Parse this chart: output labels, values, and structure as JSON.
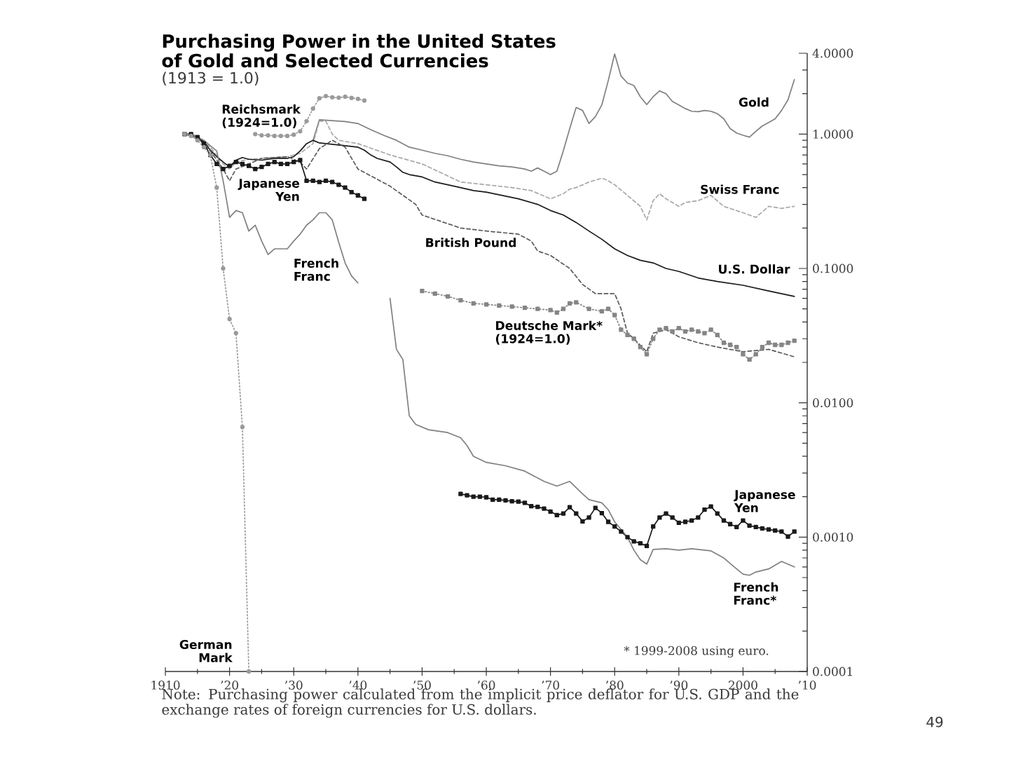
{
  "chart_data": {
    "type": "line",
    "title": "Purchasing Power in the United States of Gold and Selected Currencies",
    "subtitle": "(1913 = 1.0)",
    "log": "y",
    "xlim": [
      1910,
      2010
    ],
    "xticks": [
      1910,
      {
        "value": 1915,
        "label": null
      },
      {
        "value": 1920,
        "label": "’20"
      },
      {
        "value": 1925,
        "label": null
      },
      {
        "value": 1930,
        "label": "’30"
      },
      {
        "value": 1935,
        "label": null
      },
      {
        "value": 1940,
        "label": "’40"
      },
      {
        "value": 1945,
        "label": null
      },
      {
        "value": 1950,
        "label": "’50"
      },
      {
        "value": 1955,
        "label": null
      },
      {
        "value": 1960,
        "label": "’60"
      },
      {
        "value": 1965,
        "label": null
      },
      {
        "value": 1970,
        "label": "’70"
      },
      {
        "value": 1975,
        "label": null
      },
      {
        "value": 1980,
        "label": "’80"
      },
      {
        "value": 1985,
        "label": null
      },
      {
        "value": 1990,
        "label": "’90"
      },
      {
        "value": 1995,
        "label": null
      },
      2000,
      {
        "value": 2005,
        "label": null
      },
      {
        "value": 2010,
        "label": "’10"
      }
    ],
    "ylim": [
      0.0001,
      4
    ],
    "yticks": [
      {
        "value": 4,
        "label": "4.0000"
      },
      {
        "value": 3,
        "label": null
      },
      {
        "value": 2,
        "label": null
      },
      {
        "value": 1,
        "label": "1.0000"
      },
      {
        "value": 0.9,
        "label": null
      },
      {
        "value": 0.8,
        "label": null
      },
      {
        "value": 0.7,
        "label": null
      },
      {
        "value": 0.6,
        "label": null
      },
      {
        "value": 0.5,
        "label": null
      },
      {
        "value": 0.4,
        "label": null
      },
      {
        "value": 0.3,
        "label": null
      },
      {
        "value": 0.2,
        "label": null
      },
      {
        "value": 0.1,
        "label": "0.1000"
      },
      {
        "value": 0.09,
        "label": null
      },
      {
        "value": 0.08,
        "label": null
      },
      {
        "value": 0.07,
        "label": null
      },
      {
        "value": 0.06,
        "label": null
      },
      {
        "value": 0.05,
        "label": null
      },
      {
        "value": 0.04,
        "label": null
      },
      {
        "value": 0.03,
        "label": null
      },
      {
        "value": 0.02,
        "label": null
      },
      {
        "value": 0.01,
        "label": "0.0100"
      },
      {
        "value": 0.009,
        "label": null
      },
      {
        "value": 0.008,
        "label": null
      },
      {
        "value": 0.007,
        "label": null
      },
      {
        "value": 0.006,
        "label": null
      },
      {
        "value": 0.005,
        "label": null
      },
      {
        "value": 0.004,
        "label": null
      },
      {
        "value": 0.003,
        "label": null
      },
      {
        "value": 0.002,
        "label": null
      },
      {
        "value": 0.001,
        "label": "0.0010"
      },
      {
        "value": 0.0009,
        "label": null
      },
      {
        "value": 0.0008,
        "label": null
      },
      {
        "value": 0.0007,
        "label": null
      },
      {
        "value": 0.0006,
        "label": null
      },
      {
        "value": 0.0005,
        "label": null
      },
      {
        "value": 0.0004,
        "label": null
      },
      {
        "value": 0.0003,
        "label": null
      },
      {
        "value": 0.0002,
        "label": null
      },
      {
        "value": 0.0001,
        "label": "0.0001"
      }
    ],
    "annotations": [
      "* 1999-2008 using euro.",
      "Note: Purchasing power calculated from the implicit price deflator for U.S. GDP and the exchange rates of foreign currencies for U.S. dollars.",
      "49"
    ],
    "series": [
      {
        "name": "Gold",
        "color": "#808080",
        "line_style": "solid",
        "marker": "none",
        "x": [
          1933,
          1934,
          1936,
          1938,
          1940,
          1942,
          1944,
          1946,
          1948,
          1950,
          1952,
          1954,
          1956,
          1958,
          1960,
          1962,
          1964,
          1966,
          1967,
          1968,
          1969,
          1970,
          1971,
          1972,
          1973,
          1974,
          1975,
          1976,
          1977,
          1978,
          1979,
          1980,
          1981,
          1982,
          1983,
          1984,
          1985,
          1986,
          1987,
          1988,
          1989,
          1990,
          1991,
          1992,
          1993,
          1994,
          1995,
          1996,
          1997,
          1998,
          1999,
          2000,
          2001,
          2002,
          2003,
          2004,
          2005,
          2006,
          2007,
          2008
        ],
        "values": [
          0.9,
          1.28,
          1.26,
          1.24,
          1.2,
          1.08,
          0.98,
          0.9,
          0.8,
          0.76,
          0.72,
          0.69,
          0.65,
          0.62,
          0.6,
          0.58,
          0.57,
          0.55,
          0.53,
          0.56,
          0.53,
          0.5,
          0.53,
          0.75,
          1.1,
          1.58,
          1.5,
          1.2,
          1.35,
          1.65,
          2.5,
          3.95,
          2.7,
          2.4,
          2.3,
          1.9,
          1.66,
          1.9,
          2.1,
          2.0,
          1.75,
          1.65,
          1.55,
          1.48,
          1.47,
          1.5,
          1.48,
          1.42,
          1.3,
          1.1,
          1.02,
          0.98,
          0.95,
          1.05,
          1.15,
          1.22,
          1.3,
          1.5,
          1.8,
          2.55
        ]
      },
      {
        "name": "Swiss Franc",
        "color": "#a8a8a8",
        "line_style": "dashed",
        "marker": "none",
        "x": [
          1913,
          1915,
          1917,
          1919,
          1920,
          1921,
          1923,
          1925,
          1927,
          1929,
          1931,
          1933,
          1934,
          1935,
          1936,
          1937,
          1940,
          1945,
          1950,
          1956,
          1960,
          1964,
          1967,
          1970,
          1972,
          1973,
          1974,
          1976,
          1978,
          1979,
          1980,
          1982,
          1984,
          1985,
          1986,
          1987,
          1988,
          1990,
          1991,
          1993,
          1995,
          1997,
          2000,
          2002,
          2004,
          2006,
          2008
        ],
        "values": [
          1.0,
          0.95,
          0.8,
          0.6,
          0.55,
          0.62,
          0.65,
          0.66,
          0.67,
          0.68,
          0.72,
          0.85,
          1.25,
          1.25,
          1.0,
          0.9,
          0.85,
          0.7,
          0.6,
          0.44,
          0.42,
          0.4,
          0.38,
          0.33,
          0.36,
          0.39,
          0.4,
          0.44,
          0.47,
          0.45,
          0.42,
          0.35,
          0.29,
          0.23,
          0.32,
          0.36,
          0.33,
          0.29,
          0.31,
          0.32,
          0.35,
          0.29,
          0.26,
          0.24,
          0.29,
          0.28,
          0.29
        ]
      },
      {
        "name": "U.S. Dollar",
        "color": "#1a1a1a",
        "line_style": "solid",
        "marker": "none",
        "x": [
          1913,
          1914,
          1915,
          1916,
          1917,
          1918,
          1919,
          1920,
          1921,
          1922,
          1923,
          1925,
          1927,
          1929,
          1930,
          1931,
          1932,
          1933,
          1934,
          1936,
          1938,
          1940,
          1941,
          1942,
          1943,
          1945,
          1946,
          1947,
          1948,
          1950,
          1952,
          1955,
          1958,
          1960,
          1965,
          1968,
          1970,
          1972,
          1974,
          1976,
          1978,
          1980,
          1982,
          1984,
          1986,
          1988,
          1990,
          1993,
          1996,
          2000,
          2004,
          2008
        ],
        "values": [
          1.0,
          0.99,
          0.96,
          0.88,
          0.76,
          0.68,
          0.62,
          0.57,
          0.64,
          0.67,
          0.65,
          0.64,
          0.66,
          0.66,
          0.68,
          0.75,
          0.85,
          0.9,
          0.86,
          0.84,
          0.82,
          0.8,
          0.76,
          0.7,
          0.66,
          0.62,
          0.57,
          0.52,
          0.5,
          0.48,
          0.44,
          0.41,
          0.38,
          0.37,
          0.33,
          0.3,
          0.27,
          0.25,
          0.22,
          0.19,
          0.165,
          0.14,
          0.125,
          0.115,
          0.11,
          0.1,
          0.095,
          0.085,
          0.08,
          0.075,
          0.068,
          0.062
        ]
      },
      {
        "name": "British Pound",
        "color": "#5a5a5a",
        "line_style": "dashed",
        "marker": "none",
        "x": [
          1913,
          1915,
          1917,
          1919,
          1920,
          1921,
          1923,
          1925,
          1927,
          1929,
          1931,
          1932,
          1934,
          1936,
          1938,
          1940,
          1945,
          1949,
          1950,
          1956,
          1960,
          1965,
          1967,
          1968,
          1970,
          1973,
          1975,
          1977,
          1980,
          1981,
          1982,
          1983,
          1985,
          1986,
          1988,
          1990,
          1993,
          1996,
          2000,
          2004,
          2008
        ],
        "values": [
          1.0,
          0.94,
          0.75,
          0.55,
          0.45,
          0.55,
          0.6,
          0.66,
          0.67,
          0.68,
          0.62,
          0.55,
          0.78,
          0.9,
          0.8,
          0.55,
          0.41,
          0.3,
          0.25,
          0.2,
          0.19,
          0.18,
          0.16,
          0.135,
          0.125,
          0.1,
          0.076,
          0.065,
          0.065,
          0.05,
          0.033,
          0.03,
          0.024,
          0.033,
          0.035,
          0.031,
          0.028,
          0.026,
          0.024,
          0.025,
          0.022
        ]
      },
      {
        "name": "Deutsche Mark* (1924=1.0)",
        "color": "#858585",
        "line_style": "dotted",
        "marker": "square",
        "x": [
          1950,
          1952,
          1954,
          1956,
          1958,
          1960,
          1962,
          1964,
          1966,
          1968,
          1970,
          1971,
          1972,
          1973,
          1974,
          1976,
          1978,
          1979,
          1980,
          1981,
          1982,
          1983,
          1984,
          1985,
          1986,
          1987,
          1988,
          1989,
          1990,
          1991,
          1992,
          1993,
          1994,
          1995,
          1996,
          1997,
          1998,
          1999,
          2000,
          2001,
          2002,
          2003,
          2004,
          2005,
          2006,
          2007,
          2008
        ],
        "values": [
          0.068,
          0.065,
          0.062,
          0.058,
          0.055,
          0.054,
          0.053,
          0.052,
          0.051,
          0.05,
          0.049,
          0.047,
          0.05,
          0.055,
          0.056,
          0.05,
          0.048,
          0.05,
          0.045,
          0.035,
          0.032,
          0.03,
          0.026,
          0.023,
          0.03,
          0.035,
          0.036,
          0.034,
          0.036,
          0.034,
          0.035,
          0.034,
          0.033,
          0.035,
          0.032,
          0.028,
          0.027,
          0.026,
          0.023,
          0.021,
          0.023,
          0.026,
          0.028,
          0.027,
          0.027,
          0.028,
          0.029
        ]
      },
      {
        "name": "Japanese Yen",
        "color": "#1a1a1a",
        "line_style": "solid",
        "marker": "square",
        "x": [
          1956,
          1957,
          1958,
          1959,
          1960,
          1961,
          1962,
          1963,
          1964,
          1965,
          1966,
          1967,
          1968,
          1969,
          1970,
          1971,
          1972,
          1973,
          1974,
          1975,
          1976,
          1977,
          1978,
          1979,
          1980,
          1981,
          1982,
          1983,
          1984,
          1985,
          1986,
          1987,
          1988,
          1989,
          1990,
          1991,
          1992,
          1993,
          1994,
          1995,
          1996,
          1997,
          1998,
          1999,
          2000,
          2001,
          2002,
          2003,
          2004,
          2005,
          2006,
          2007,
          2008
        ],
        "values": [
          0.0021,
          0.00205,
          0.002,
          0.002,
          0.00198,
          0.0019,
          0.0019,
          0.00188,
          0.00185,
          0.00184,
          0.0018,
          0.0017,
          0.00168,
          0.00163,
          0.00155,
          0.00146,
          0.0015,
          0.00167,
          0.0015,
          0.00131,
          0.0014,
          0.00165,
          0.00151,
          0.0013,
          0.0012,
          0.0011,
          0.001,
          0.00093,
          0.0009,
          0.00086,
          0.0012,
          0.0014,
          0.0015,
          0.0014,
          0.00128,
          0.0013,
          0.00133,
          0.0014,
          0.0016,
          0.00169,
          0.0015,
          0.00133,
          0.00125,
          0.00119,
          0.00133,
          0.00122,
          0.00119,
          0.00116,
          0.00114,
          0.00112,
          0.0011,
          0.00101,
          0.0011
        ]
      },
      {
        "name": "French Franc*",
        "color": "#808080",
        "line_style": "solid",
        "marker": "none",
        "x": [
          1945,
          1946,
          1947,
          1948,
          1949,
          1951,
          1954,
          1956,
          1957,
          1958,
          1960,
          1963,
          1966,
          1969,
          1971,
          1973,
          1975,
          1976,
          1978,
          1979,
          1980,
          1982,
          1983,
          1984,
          1985,
          1986,
          1988,
          1990,
          1992,
          1994,
          1995,
          1997,
          1999,
          2000,
          2001,
          2002,
          2004,
          2006,
          2008
        ],
        "values": [
          0.06,
          0.025,
          0.021,
          0.008,
          0.0069,
          0.0063,
          0.006,
          0.0055,
          0.0048,
          0.004,
          0.0036,
          0.0034,
          0.0031,
          0.0026,
          0.0024,
          0.0026,
          0.0021,
          0.0019,
          0.0018,
          0.0016,
          0.0013,
          0.001,
          0.0008,
          0.00068,
          0.00063,
          0.00081,
          0.00082,
          0.0008,
          0.00082,
          0.0008,
          0.00079,
          0.0007,
          0.00058,
          0.00053,
          0.00052,
          0.00055,
          0.00058,
          0.00066,
          0.0006
        ]
      },
      {
        "name": "Reichsmark (1924=1.0)",
        "color": "#9a9a9a",
        "line_style": "dotted",
        "marker": "circle",
        "x": [
          1924,
          1925,
          1926,
          1927,
          1928,
          1929,
          1930,
          1931,
          1932,
          1933,
          1934,
          1935,
          1936,
          1937,
          1938,
          1939,
          1940,
          1941
        ],
        "values": [
          1.0,
          0.98,
          0.98,
          0.97,
          0.97,
          0.97,
          0.99,
          1.05,
          1.25,
          1.55,
          1.85,
          1.92,
          1.88,
          1.87,
          1.9,
          1.86,
          1.83,
          1.78
        ]
      },
      {
        "name": "Japanese Yen",
        "color": "#1a1a1a",
        "line_style": "solid",
        "marker": "square",
        "x": [
          1913,
          1914,
          1915,
          1916,
          1917,
          1918,
          1919,
          1920,
          1921,
          1922,
          1923,
          1924,
          1925,
          1926,
          1927,
          1928,
          1929,
          1930,
          1931,
          1932,
          1933,
          1934,
          1935,
          1936,
          1937,
          1938,
          1939,
          1940,
          1941
        ],
        "values": [
          1.0,
          1.0,
          0.95,
          0.85,
          0.7,
          0.6,
          0.55,
          0.58,
          0.62,
          0.6,
          0.58,
          0.55,
          0.57,
          0.6,
          0.62,
          0.6,
          0.6,
          0.62,
          0.64,
          0.45,
          0.45,
          0.44,
          0.45,
          0.44,
          0.42,
          0.4,
          0.37,
          0.35,
          0.33
        ]
      },
      {
        "name": "French Franc",
        "color": "#808080",
        "line_style": "solid",
        "marker": "none",
        "x": [
          1913,
          1914,
          1915,
          1916,
          1917,
          1918,
          1919,
          1920,
          1921,
          1922,
          1923,
          1924,
          1925,
          1926,
          1927,
          1928,
          1929,
          1930,
          1931,
          1932,
          1933,
          1934,
          1935,
          1936,
          1937,
          1938,
          1939,
          1940
        ],
        "values": [
          1.0,
          1.0,
          0.95,
          0.9,
          0.82,
          0.75,
          0.45,
          0.24,
          0.27,
          0.26,
          0.19,
          0.21,
          0.16,
          0.127,
          0.14,
          0.14,
          0.14,
          0.16,
          0.18,
          0.21,
          0.23,
          0.26,
          0.26,
          0.23,
          0.157,
          0.11,
          0.088,
          0.078
        ]
      },
      {
        "name": "German Mark",
        "color": "#9a9a9a",
        "line_style": "dotted",
        "marker": "circle",
        "x": [
          1913,
          1914,
          1915,
          1916,
          1917,
          1918,
          1919,
          1920,
          1921,
          1922,
          1923
        ],
        "values": [
          1.0,
          0.97,
          0.9,
          0.8,
          0.7,
          0.4,
          0.1,
          0.042,
          0.033,
          0.0066,
          0.0001
        ]
      }
    ]
  }
}
